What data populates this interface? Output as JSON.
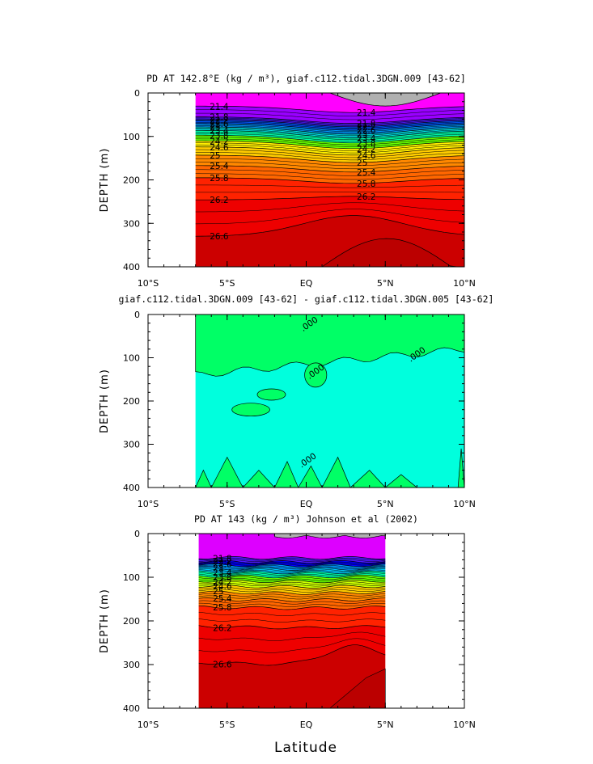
{
  "figure": {
    "xlabel": "Latitude"
  },
  "chart_data": [
    {
      "type": "heatmap",
      "title": "PD AT 142.8°E (kg / m³), giaf.c112.tidal.3DGN.009 [43-62]",
      "ylabel": "DEPTH (m)",
      "xlabel": "",
      "x_range": [
        -10,
        10
      ],
      "y_range": [
        0,
        400
      ],
      "y_inverted": true,
      "x_ticks": [
        "10°S",
        "5°S",
        "EQ",
        "5°N",
        "10°N"
      ],
      "y_ticks": [
        "0",
        "100",
        "200",
        "300",
        "400"
      ],
      "data_extent_lat": [
        -7,
        10
      ],
      "land_or_missing_color": "#b0b0b0",
      "contour_levels": [
        21.4,
        21.8,
        22.2,
        22.6,
        23,
        23.4,
        23.8,
        24.2,
        24.6,
        25,
        25.4,
        25.8,
        26.2,
        26.6
      ],
      "contour_depths_edge": [
        30,
        55,
        62,
        70,
        78,
        86,
        97,
        110,
        124,
        143,
        167,
        195,
        246,
        330
      ],
      "contour_depths_center": [
        45,
        70,
        78,
        86,
        95,
        104,
        115,
        128,
        143,
        160,
        182,
        208,
        238,
        282
      ],
      "contour_labels": [
        "21.4",
        "21.8",
        "22.2",
        "22.6",
        "23",
        "23.4",
        "23.8",
        "24.2",
        "24.6",
        "25",
        "25.4",
        "25.8",
        "26.2",
        "26.6"
      ],
      "grid": false
    },
    {
      "type": "heatmap",
      "title": "giaf.c112.tidal.3DGN.009 [43-62] - giaf.c112.tidal.3DGN.005 [43-62]",
      "ylabel": "DEPTH (m)",
      "xlabel": "",
      "x_range": [
        -10,
        10
      ],
      "y_range": [
        0,
        400
      ],
      "y_inverted": true,
      "x_ticks": [
        "10°S",
        "5°S",
        "EQ",
        "5°N",
        "10°N"
      ],
      "y_ticks": [
        "0",
        "100",
        "200",
        "300",
        "400"
      ],
      "data_extent_lat": [
        -7,
        10
      ],
      "background_value_color": "#00ffdd",
      "positive_anomaly_color": "#00ff66",
      "contour_levels": [
        0
      ],
      "contour_labels": [
        ".000",
        ".000",
        ".000",
        ".000"
      ],
      "grid": false
    },
    {
      "type": "heatmap",
      "title": "PD AT 143 (kg / m³) Johnson et al (2002)",
      "ylabel": "DEPTH (m)",
      "xlabel": "Latitude",
      "x_range": [
        -10,
        10
      ],
      "y_range": [
        0,
        400
      ],
      "y_inverted": true,
      "x_ticks": [
        "10°S",
        "5°S",
        "EQ",
        "5°N",
        "10°N"
      ],
      "y_ticks": [
        "0",
        "100",
        "200",
        "300",
        "400"
      ],
      "data_extent_lat": [
        -6.8,
        5
      ],
      "contour_levels": [
        21.8,
        22.2,
        22.6,
        23,
        23.4,
        23.8,
        24.2,
        24.6,
        25,
        25.4,
        25.8,
        26.2,
        26.6
      ],
      "contour_depths": [
        55,
        64,
        72,
        80,
        88,
        97,
        108,
        120,
        134,
        150,
        168,
        212,
        295
      ],
      "contour_labels": [
        "21.8",
        "22.2",
        "22.6",
        "23",
        "23.4",
        "23.8",
        "24.2",
        "24.6",
        "25",
        "25.4",
        "25.8",
        "26.2",
        "26.6"
      ],
      "grid": false
    }
  ]
}
